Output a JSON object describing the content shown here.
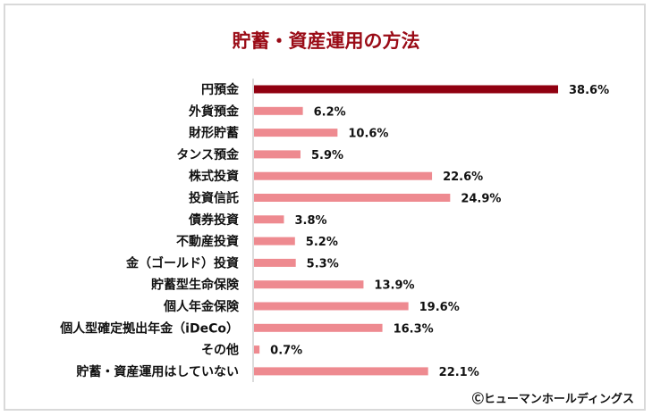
{
  "chart_data": {
    "type": "bar",
    "orientation": "horizontal",
    "title": "貯蓄・資産運用の方法",
    "categories": [
      "円預金",
      "外貨預金",
      "財形貯蓄",
      "タンス預金",
      "株式投資",
      "投資信託",
      "債券投資",
      "不動産投資",
      "金（ゴールド）投資",
      "貯蓄型生命保険",
      "個人年金保険",
      "個人型確定拠出年金（iDeCo）",
      "その他",
      "貯蓄・資産運用はしていない"
    ],
    "values": [
      38.6,
      6.2,
      10.6,
      5.9,
      22.6,
      24.9,
      3.8,
      5.2,
      5.3,
      13.9,
      19.6,
      16.3,
      0.7,
      22.1
    ],
    "value_labels": [
      "38.6%",
      "6.2%",
      "10.6%",
      "5.9%",
      "22.6%",
      "24.9%",
      "3.8%",
      "5.2%",
      "5.3%",
      "13.9%",
      "19.6%",
      "16.3%",
      "0.7%",
      "22.1%"
    ],
    "xlabel": "",
    "ylabel": "",
    "xlim": [
      0,
      38.6
    ],
    "grid": false,
    "highlight_color": "#900010",
    "bar_color": "#EE8A90"
  },
  "credit": "Ⓒヒューマンホールディングス"
}
